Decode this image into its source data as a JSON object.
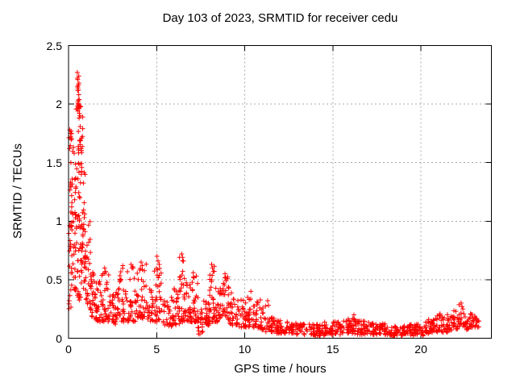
{
  "chart_data": {
    "type": "scatter",
    "title": "Day 103 of 2023, SRMTID for receiver cedu",
    "xlabel": "GPS time / hours",
    "ylabel": "SRMTID / TECUs",
    "xlim": [
      0,
      24
    ],
    "ylim": [
      0,
      2.5
    ],
    "xticks": [
      0,
      5,
      10,
      15,
      20
    ],
    "xtick_labels": [
      "0",
      "5",
      "10",
      "15",
      "20"
    ],
    "yticks": [
      0,
      0.5,
      1,
      1.5,
      2,
      2.5
    ],
    "ytick_labels": [
      "0",
      "0.5",
      "1",
      "1.5",
      "2",
      "2.5"
    ],
    "grid": {
      "show": true,
      "color": "#a9a9a9",
      "dash": "2,3"
    },
    "axis_color": "#000000",
    "background": "#ffffff",
    "marker": {
      "shape": "plus",
      "color": "#ff0000",
      "size": 7,
      "stroke_width": 1
    },
    "legend": "none",
    "seed": 1303,
    "series": [
      {
        "name": "SRMTID",
        "peak_points": [
          [
            0.5,
            2.27
          ],
          [
            0.52,
            2.21
          ],
          [
            0.51,
            2.15
          ],
          [
            0.56,
            2.12
          ],
          [
            0.58,
            2.08
          ],
          [
            0.53,
            2.02
          ],
          [
            0.56,
            2.0
          ],
          [
            0.58,
            1.99
          ],
          [
            0.55,
            1.97
          ],
          [
            0.62,
            1.92
          ],
          [
            0.64,
            1.9
          ],
          [
            0.6,
            1.88
          ],
          [
            0.07,
            1.78
          ],
          [
            0.1,
            1.75
          ],
          [
            0.12,
            1.72
          ],
          [
            0.06,
            1.62
          ],
          [
            0.28,
            1.63
          ],
          [
            0.32,
            1.58
          ],
          [
            2.05,
            0.6
          ],
          [
            2.1,
            0.57
          ],
          [
            3.08,
            0.62
          ],
          [
            3.55,
            0.63
          ],
          [
            3.6,
            0.6
          ],
          [
            4.12,
            0.65
          ],
          [
            4.18,
            0.62
          ],
          [
            5.02,
            0.7
          ],
          [
            5.08,
            0.66
          ],
          [
            5.15,
            0.63
          ],
          [
            6.42,
            0.72
          ],
          [
            6.47,
            0.69
          ],
          [
            6.52,
            0.66
          ],
          [
            7.08,
            0.56
          ],
          [
            8.12,
            0.63
          ],
          [
            8.17,
            0.6
          ],
          [
            8.22,
            0.57
          ],
          [
            8.88,
            0.55
          ],
          [
            8.92,
            0.52
          ],
          [
            10.35,
            0.4
          ],
          [
            11.3,
            0.32
          ],
          [
            11.35,
            0.28
          ],
          [
            16.2,
            0.2
          ],
          [
            22.28,
            0.3
          ],
          [
            22.33,
            0.27
          ],
          [
            22.38,
            0.25
          ]
        ],
        "density_bins": [
          [
            0.02,
            0.18,
            0.85,
            1.8,
            20,
            1.0
          ],
          [
            0.02,
            0.18,
            0.25,
            0.85,
            14,
            1.0
          ],
          [
            0.15,
            0.4,
            0.4,
            1.66,
            26,
            1.1
          ],
          [
            0.35,
            0.55,
            0.35,
            1.5,
            22,
            1.1
          ],
          [
            0.42,
            0.72,
            1.93,
            2.04,
            12,
            1.0
          ],
          [
            0.48,
            0.62,
            2.08,
            2.28,
            6,
            1.0
          ],
          [
            0.55,
            0.85,
            1.5,
            1.93,
            18,
            1.0
          ],
          [
            0.5,
            0.95,
            0.75,
            1.5,
            42,
            1.1
          ],
          [
            0.55,
            1.0,
            0.32,
            0.75,
            26,
            1.0
          ],
          [
            0.95,
            1.25,
            0.28,
            1.02,
            26,
            1.4
          ],
          [
            1.2,
            1.5,
            0.18,
            0.6,
            24,
            1.3
          ],
          [
            1.45,
            1.85,
            0.14,
            0.5,
            30,
            1.5
          ],
          [
            1.85,
            2.35,
            0.14,
            0.6,
            36,
            1.8
          ],
          [
            2.35,
            2.75,
            0.12,
            0.4,
            28,
            1.5
          ],
          [
            2.75,
            3.3,
            0.13,
            0.6,
            38,
            1.9
          ],
          [
            3.3,
            3.8,
            0.14,
            0.62,
            34,
            1.9
          ],
          [
            3.8,
            4.45,
            0.17,
            0.65,
            44,
            1.7
          ],
          [
            4.45,
            4.8,
            0.14,
            0.43,
            24,
            1.4
          ],
          [
            4.8,
            5.3,
            0.14,
            0.68,
            36,
            2.0
          ],
          [
            5.3,
            5.9,
            0.1,
            0.36,
            30,
            1.4
          ],
          [
            5.9,
            6.3,
            0.11,
            0.43,
            28,
            1.5
          ],
          [
            6.3,
            6.65,
            0.14,
            0.7,
            28,
            1.8
          ],
          [
            6.65,
            7.0,
            0.14,
            0.48,
            26,
            1.5
          ],
          [
            7.0,
            7.35,
            0.14,
            0.54,
            28,
            1.6
          ],
          [
            7.3,
            7.65,
            0.03,
            0.28,
            20,
            1.2
          ],
          [
            7.65,
            8.0,
            0.11,
            0.36,
            26,
            1.4
          ],
          [
            8.0,
            8.35,
            0.14,
            0.62,
            28,
            1.8
          ],
          [
            8.35,
            8.75,
            0.14,
            0.43,
            28,
            1.4
          ],
          [
            8.75,
            9.1,
            0.16,
            0.53,
            28,
            1.5
          ],
          [
            9.1,
            9.6,
            0.11,
            0.4,
            30,
            1.5
          ],
          [
            9.6,
            10.1,
            0.09,
            0.33,
            30,
            1.4
          ],
          [
            10.1,
            10.6,
            0.09,
            0.4,
            28,
            1.6
          ],
          [
            10.6,
            11.2,
            0.07,
            0.33,
            32,
            1.6
          ],
          [
            11.2,
            11.7,
            0.05,
            0.2,
            28,
            1.3
          ],
          [
            11.7,
            12.5,
            0.04,
            0.15,
            42,
            1.2
          ],
          [
            12.5,
            13.5,
            0.03,
            0.13,
            52,
            1.1
          ],
          [
            13.5,
            14.5,
            0.02,
            0.12,
            52,
            1.1
          ],
          [
            14.5,
            15.5,
            0.03,
            0.14,
            52,
            1.2
          ],
          [
            15.5,
            16.3,
            0.04,
            0.17,
            42,
            1.3
          ],
          [
            16.3,
            17.2,
            0.03,
            0.15,
            48,
            1.2
          ],
          [
            17.2,
            18.2,
            0.03,
            0.13,
            52,
            1.1
          ],
          [
            18.2,
            19.2,
            0.02,
            0.11,
            52,
            1.1
          ],
          [
            19.2,
            20.2,
            0.02,
            0.12,
            52,
            1.1
          ],
          [
            20.2,
            20.9,
            0.04,
            0.17,
            38,
            1.3
          ],
          [
            20.9,
            21.6,
            0.05,
            0.21,
            38,
            1.4
          ],
          [
            21.6,
            22.1,
            0.07,
            0.24,
            28,
            1.3
          ],
          [
            22.1,
            22.5,
            0.09,
            0.3,
            20,
            1.2
          ],
          [
            22.5,
            23.0,
            0.07,
            0.21,
            28,
            1.2
          ],
          [
            23.0,
            23.3,
            0.09,
            0.19,
            12,
            1.0
          ]
        ]
      }
    ]
  }
}
